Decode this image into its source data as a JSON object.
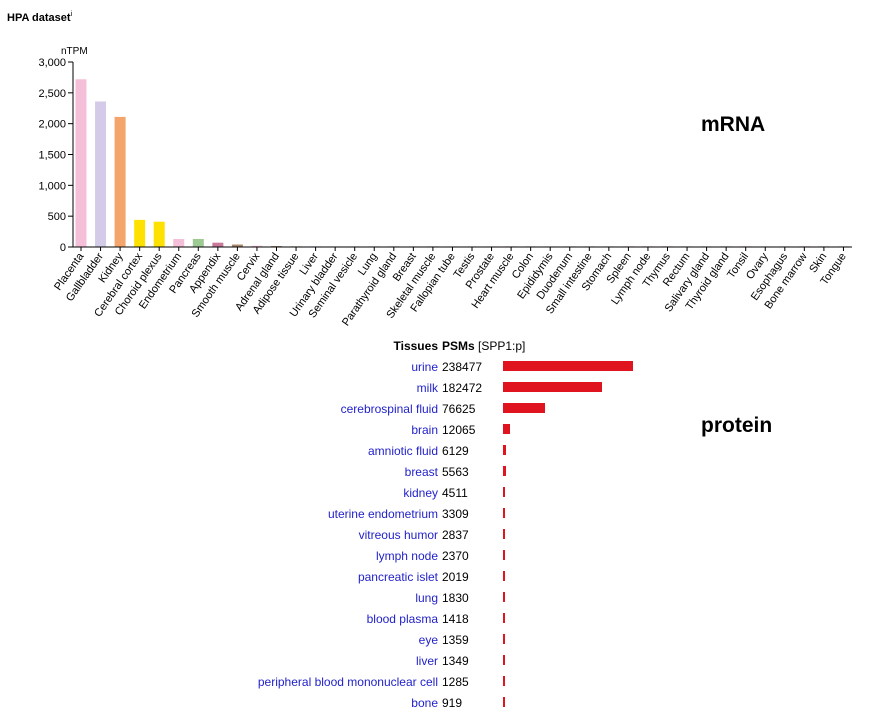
{
  "header": {
    "dataset_title": "HPA dataset",
    "info_marker": "i"
  },
  "labels": {
    "mrna": "mRNA",
    "protein": "protein"
  },
  "chart_data": [
    {
      "type": "bar",
      "ylabel": "nTPM",
      "ylim": [
        0,
        3000
      ],
      "yticks": [
        "0",
        "500",
        "1,000",
        "1,500",
        "2,000",
        "2,500",
        "3,000"
      ],
      "categories": [
        "Placenta",
        "Gallbladder",
        "Kidney",
        "Cerebral cortex",
        "Choroid plexus",
        "Endometrium",
        "Pancreas",
        "Appendix",
        "Smooth muscle",
        "Cervix",
        "Adrenal gland",
        "Adipose tissue",
        "Liver",
        "Urinary bladder",
        "Seminal vesicle",
        "Lung",
        "Parathyroid gland",
        "Breast",
        "Skeletal muscle",
        "Fallopian tube",
        "Testis",
        "Prostate",
        "Heart muscle",
        "Colon",
        "Epididymis",
        "Duodenum",
        "Small intestine",
        "Stomach",
        "Spleen",
        "Lymph node",
        "Thymus",
        "Rectum",
        "Salivary gland",
        "Thyroid gland",
        "Tonsil",
        "Ovary",
        "Esophagus",
        "Bone marrow",
        "Skin",
        "Tongue"
      ],
      "values": [
        2720,
        2360,
        2110,
        440,
        410,
        130,
        130,
        70,
        40,
        20,
        15,
        10,
        8,
        8,
        7,
        7,
        6,
        6,
        5,
        5,
        4,
        4,
        4,
        3,
        3,
        3,
        3,
        3,
        3,
        2,
        2,
        2,
        2,
        2,
        1,
        1,
        1,
        1,
        1,
        1
      ],
      "colors": [
        "#f6bfd9",
        "#d4cbe8",
        "#f4a56b",
        "#ffe100",
        "#ffe100",
        "#f6bfd9",
        "#9dca93",
        "#c97a9a",
        "#a9876d",
        "#f6bfd9",
        "#a9876d",
        "#a9876d",
        "#b6a5d4",
        "#f6bfd9",
        "#f6bfd9",
        "#9ecae1",
        "#a9876d",
        "#f6bfd9",
        "#a9876d",
        "#f6bfd9",
        "#f6bfd9",
        "#f6bfd9",
        "#c97a9a",
        "#9dca93",
        "#f6bfd9",
        "#9dca93",
        "#9dca93",
        "#9dca93",
        "#c97a9a",
        "#c97a9a",
        "#c97a9a",
        "#9dca93",
        "#9dca93",
        "#a9876d",
        "#c97a9a",
        "#f6bfd9",
        "#9dca93",
        "#c97a9a",
        "#a9876d",
        "#9dca93"
      ]
    },
    {
      "type": "bar",
      "orientation": "horizontal",
      "header_tissues": "Tissues",
      "header_psms": "PSMs",
      "header_psms_sub": "[SPP1:p]",
      "categories": [
        "urine",
        "milk",
        "cerebrospinal fluid",
        "brain",
        "amniotic fluid",
        "breast",
        "kidney",
        "uterine endometrium",
        "vitreous humor",
        "lymph node",
        "pancreatic islet",
        "lung",
        "blood plasma",
        "eye",
        "liver",
        "peripheral blood mononuclear cell",
        "bone"
      ],
      "values": [
        238477,
        182472,
        76625,
        12065,
        6129,
        5563,
        4511,
        3309,
        2837,
        2370,
        2019,
        1830,
        1418,
        1359,
        1349,
        1285,
        919
      ],
      "bar_color": "#e0141f",
      "link_color": "#2222cc"
    }
  ]
}
